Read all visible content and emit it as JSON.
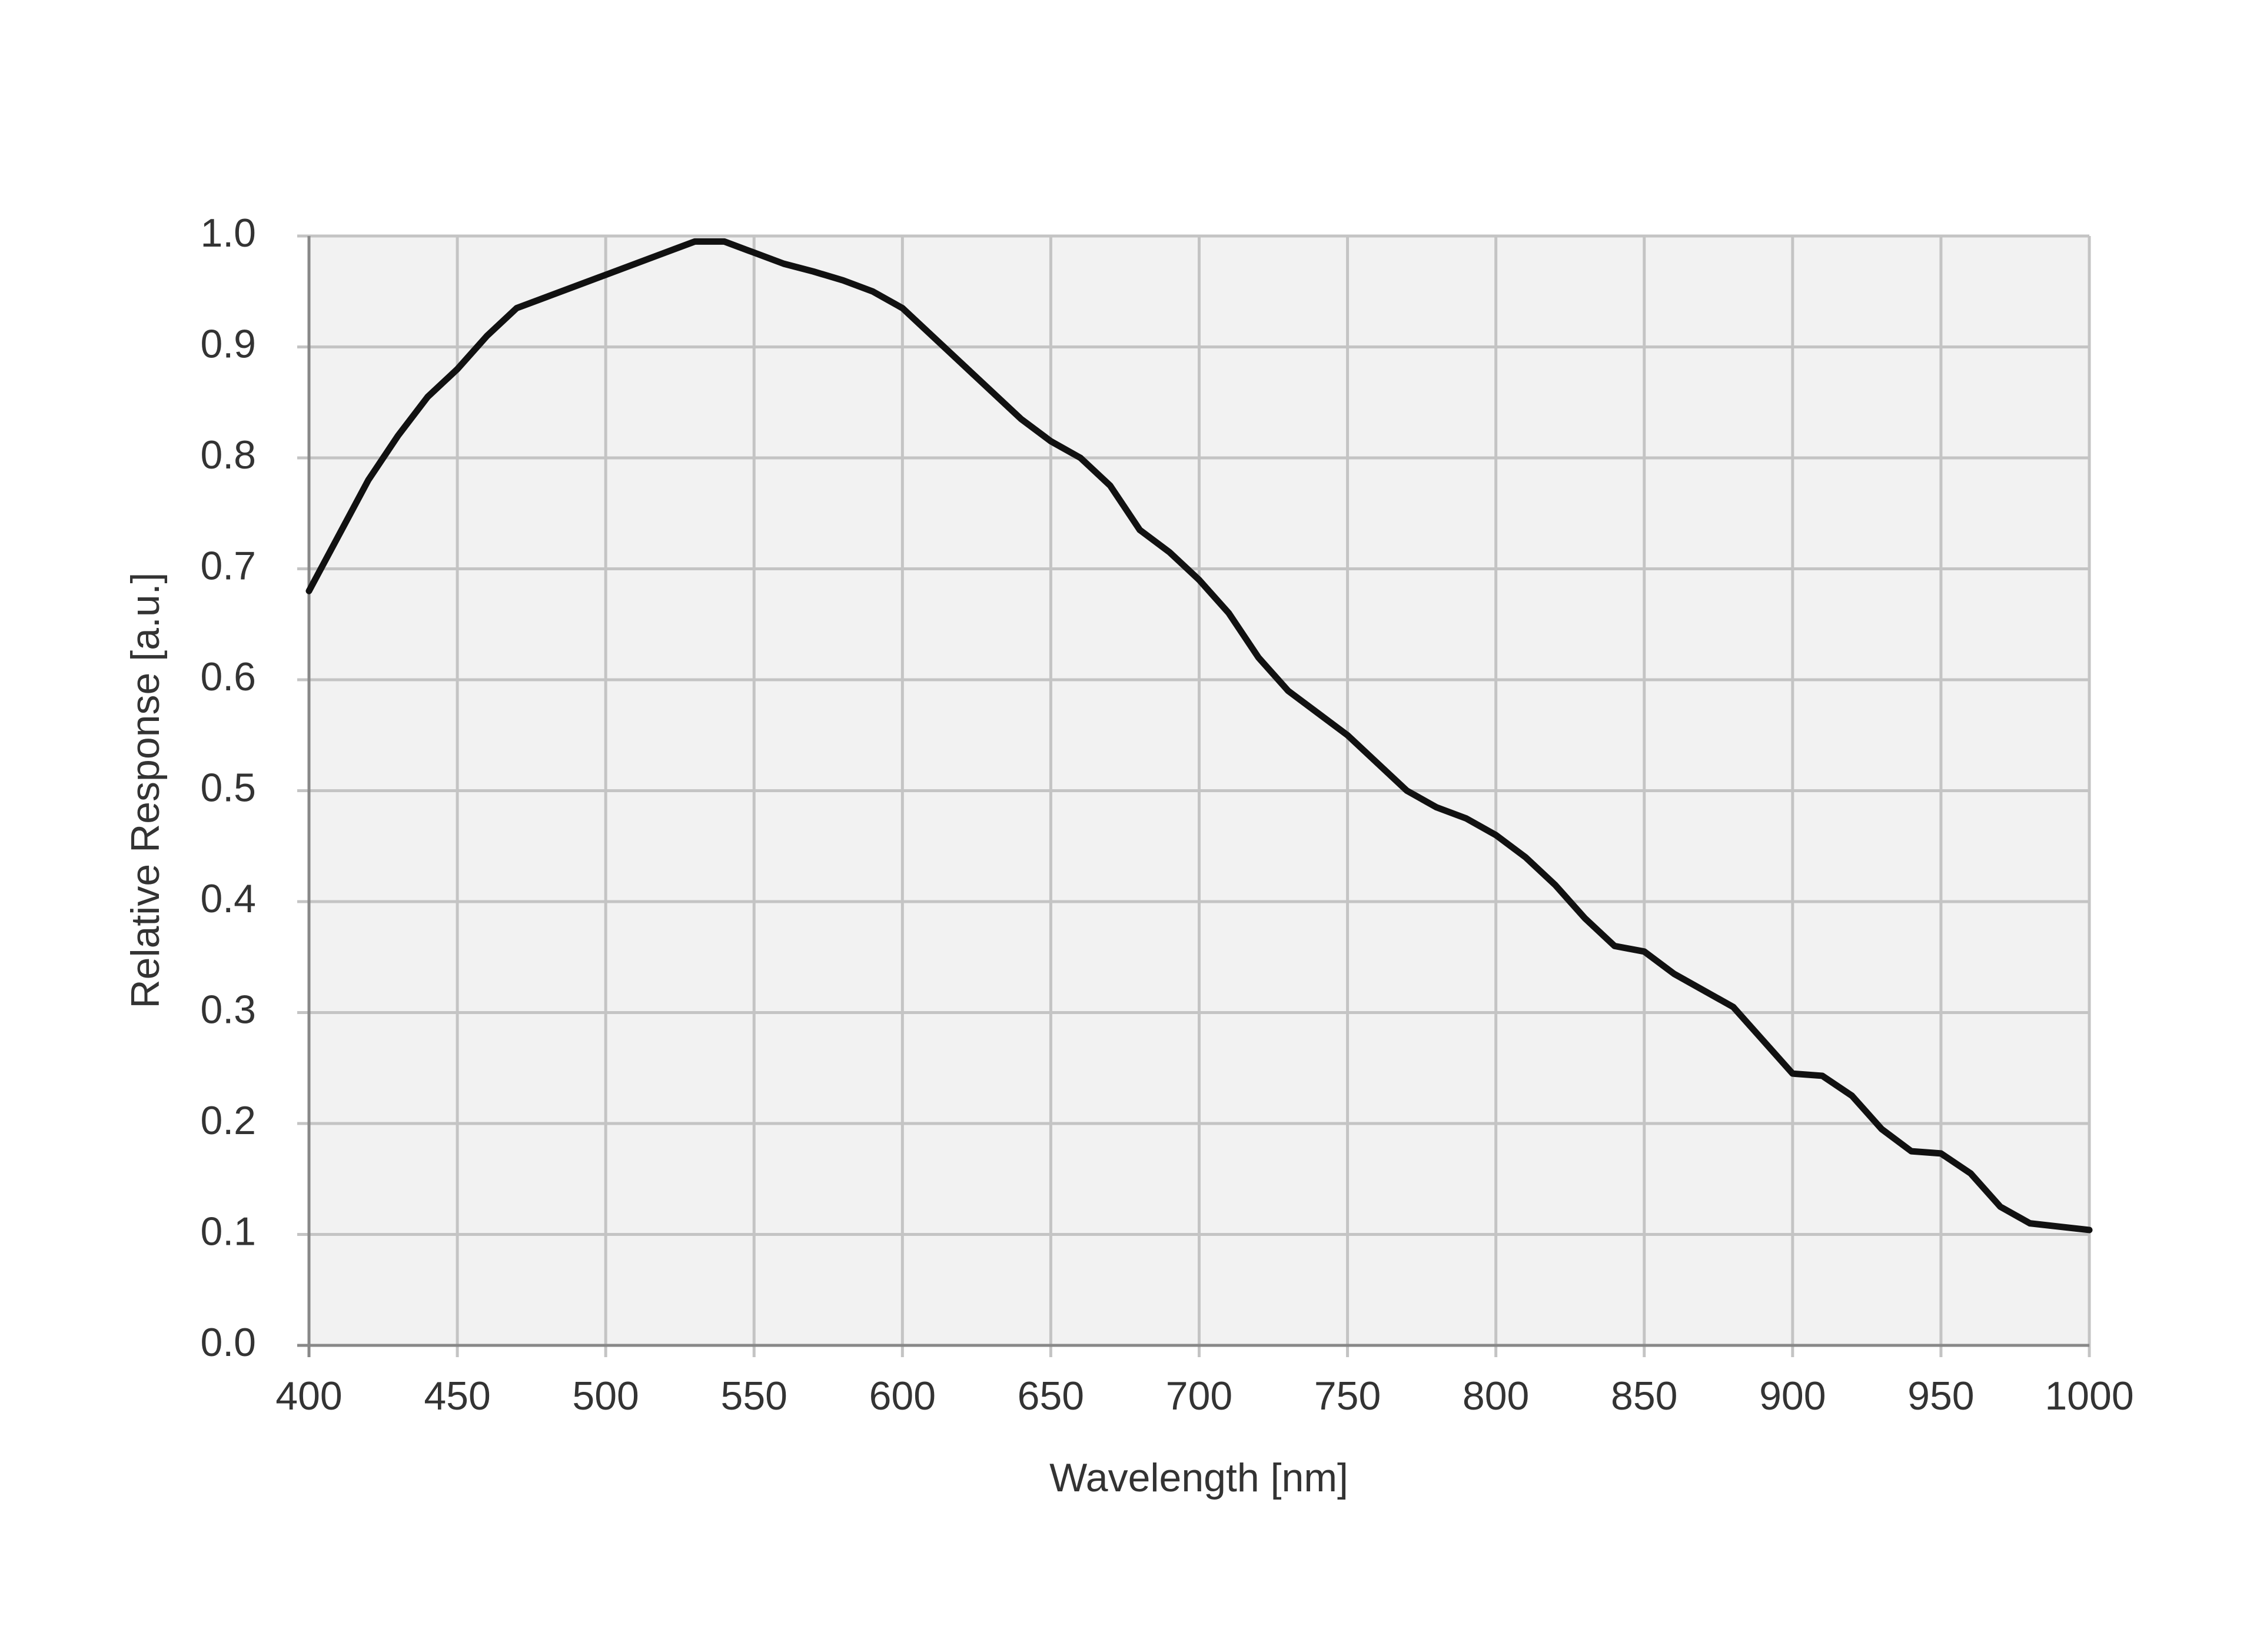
{
  "chart_data": {
    "type": "line",
    "xlabel": "Wavelength   [nm]",
    "ylabel": "Relative Response [a.u.]",
    "x": [
      400,
      410,
      420,
      430,
      440,
      450,
      460,
      470,
      480,
      490,
      500,
      510,
      520,
      530,
      540,
      550,
      560,
      570,
      580,
      590,
      600,
      610,
      620,
      630,
      640,
      650,
      660,
      670,
      680,
      690,
      700,
      710,
      720,
      730,
      740,
      750,
      760,
      770,
      780,
      790,
      800,
      810,
      820,
      830,
      840,
      850,
      860,
      870,
      880,
      890,
      900,
      910,
      920,
      930,
      940,
      950,
      960,
      970,
      980,
      990,
      1000
    ],
    "series": [
      {
        "color": "#111111",
        "values": [
          0.68,
          0.73,
          0.78,
          0.82,
          0.855,
          0.88,
          0.91,
          0.935,
          0.945,
          0.955,
          0.965,
          0.975,
          0.985,
          0.995,
          0.995,
          0.985,
          0.975,
          0.968,
          0.96,
          0.95,
          0.935,
          0.91,
          0.885,
          0.86,
          0.835,
          0.815,
          0.8,
          0.775,
          0.735,
          0.715,
          0.69,
          0.66,
          0.62,
          0.59,
          0.57,
          0.55,
          0.525,
          0.5,
          0.485,
          0.475,
          0.46,
          0.44,
          0.415,
          0.385,
          0.36,
          0.355,
          0.335,
          0.32,
          0.305,
          0.275,
          0.245,
          0.243,
          0.225,
          0.195,
          0.175,
          0.173,
          0.155,
          0.125,
          0.11,
          0.107,
          0.104
        ]
      }
    ],
    "xlim": [
      400,
      1000
    ],
    "xticks": [
      400,
      450,
      500,
      550,
      600,
      650,
      700,
      750,
      800,
      850,
      900,
      950,
      1000
    ],
    "ylim": [
      0,
      1
    ],
    "yticks": [
      {
        "value": 0,
        "label": "0.0"
      },
      0.1,
      0.2,
      0.3,
      0.4,
      0.5,
      0.6,
      0.7,
      0.8,
      0.9,
      {
        "value": 1,
        "label": "1.0"
      }
    ],
    "grid": true
  }
}
